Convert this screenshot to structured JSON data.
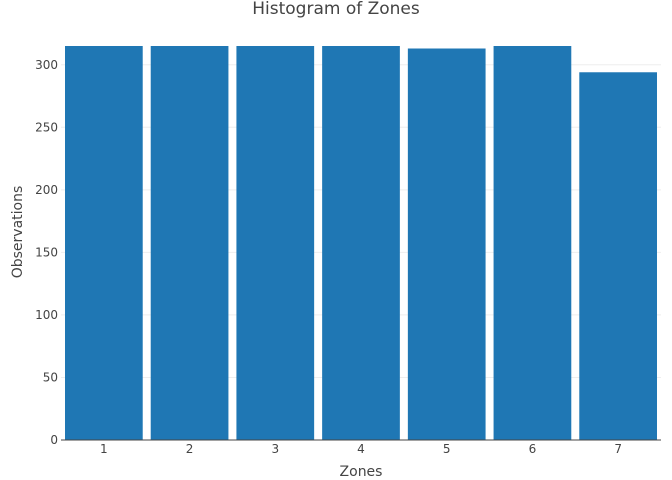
{
  "chart_data": {
    "type": "bar",
    "title": "Histogram of Zones",
    "xlabel": "Zones",
    "ylabel": "Observations",
    "categories": [
      "1",
      "2",
      "3",
      "4",
      "5",
      "6",
      "7"
    ],
    "values": [
      315,
      315,
      315,
      315,
      313,
      315,
      294
    ],
    "ylim": [
      0,
      315
    ],
    "yticks": [
      0,
      50,
      100,
      150,
      200,
      250,
      300
    ],
    "grid": true,
    "bar_color": "#1f77b4"
  }
}
